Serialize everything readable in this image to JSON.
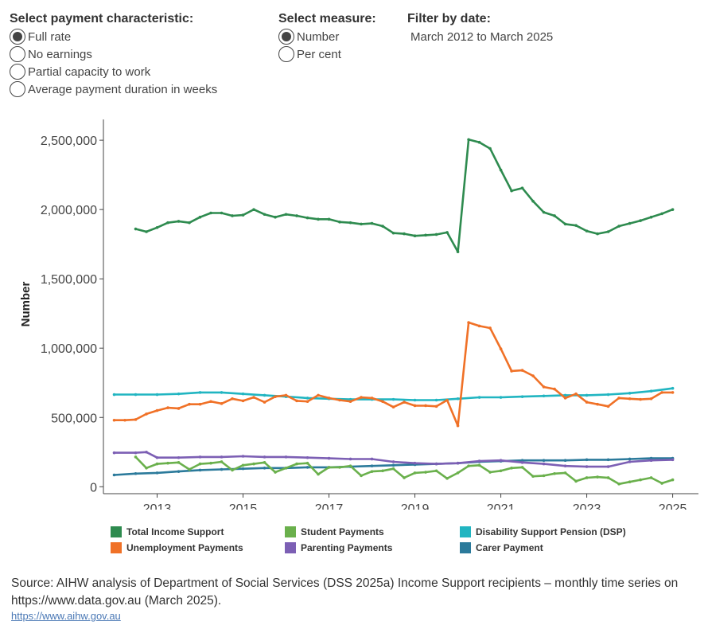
{
  "controls": {
    "payment": {
      "heading": "Select payment characteristic:",
      "options": [
        "Full rate",
        "No earnings",
        "Partial capacity to work",
        "Average payment duration in weeks"
      ],
      "selected_index": 0
    },
    "measure": {
      "heading": "Select measure:",
      "options": [
        "Number",
        "Per cent"
      ],
      "selected_index": 0
    },
    "date_filter": {
      "heading": "Filter by date:",
      "value": "March 2012 to March 2025"
    }
  },
  "chart_data": {
    "type": "line",
    "ylabel": "Number",
    "xlabel": "",
    "ylim": [
      -50000,
      2650000
    ],
    "xlim": [
      2011.75,
      2025.6
    ],
    "y_ticks": [
      0,
      500000,
      1000000,
      1500000,
      2000000,
      2500000
    ],
    "y_tick_labels": [
      "0",
      "500,000",
      "1,000,000",
      "1,500,000",
      "2,000,000",
      "2,500,000"
    ],
    "x_ticks": [
      2013,
      2015,
      2017,
      2019,
      2021,
      2023,
      2025
    ],
    "x_tick_labels": [
      "2013",
      "2015",
      "2017",
      "2019",
      "2021",
      "2023",
      "2025"
    ],
    "grid": false,
    "legend_position": "bottom",
    "series": [
      {
        "name": "Total Income Support",
        "color": "#2e8b4f",
        "x": [
          2012.5,
          2012.75,
          2013.0,
          2013.25,
          2013.5,
          2013.75,
          2014.0,
          2014.25,
          2014.5,
          2014.75,
          2015.0,
          2015.25,
          2015.5,
          2015.75,
          2016.0,
          2016.25,
          2016.5,
          2016.75,
          2017.0,
          2017.25,
          2017.5,
          2017.75,
          2018.0,
          2018.25,
          2018.5,
          2018.75,
          2019.0,
          2019.25,
          2019.5,
          2019.75,
          2020.0,
          2020.25,
          2020.5,
          2020.75,
          2021.0,
          2021.25,
          2021.5,
          2021.75,
          2022.0,
          2022.25,
          2022.5,
          2022.75,
          2023.0,
          2023.25,
          2023.5,
          2023.75,
          2024.0,
          2024.25,
          2024.5,
          2024.75,
          2025.0
        ],
        "values": [
          1860000,
          1840000,
          1870000,
          1905000,
          1915000,
          1905000,
          1945000,
          1975000,
          1975000,
          1955000,
          1960000,
          2000000,
          1965000,
          1945000,
          1965000,
          1955000,
          1940000,
          1930000,
          1930000,
          1910000,
          1905000,
          1895000,
          1900000,
          1880000,
          1830000,
          1825000,
          1810000,
          1815000,
          1820000,
          1835000,
          1695000,
          2505000,
          2485000,
          2440000,
          2285000,
          2135000,
          2155000,
          2060000,
          1980000,
          1955000,
          1895000,
          1885000,
          1845000,
          1825000,
          1840000,
          1880000,
          1900000,
          1920000,
          1945000,
          1970000,
          2000000
        ]
      },
      {
        "name": "Unemployment Payments",
        "color": "#f07127",
        "x": [
          2012.0,
          2012.25,
          2012.5,
          2012.75,
          2013.0,
          2013.25,
          2013.5,
          2013.75,
          2014.0,
          2014.25,
          2014.5,
          2014.75,
          2015.0,
          2015.25,
          2015.5,
          2015.75,
          2016.0,
          2016.25,
          2016.5,
          2016.75,
          2017.0,
          2017.25,
          2017.5,
          2017.75,
          2018.0,
          2018.25,
          2018.5,
          2018.75,
          2019.0,
          2019.25,
          2019.5,
          2019.75,
          2020.0,
          2020.25,
          2020.5,
          2020.75,
          2021.0,
          2021.25,
          2021.5,
          2021.75,
          2022.0,
          2022.25,
          2022.5,
          2022.75,
          2023.0,
          2023.25,
          2023.5,
          2023.75,
          2024.0,
          2024.25,
          2024.5,
          2024.75,
          2025.0
        ],
        "values": [
          480000,
          480000,
          485000,
          525000,
          550000,
          570000,
          565000,
          595000,
          595000,
          615000,
          600000,
          635000,
          620000,
          645000,
          610000,
          650000,
          660000,
          620000,
          615000,
          660000,
          640000,
          625000,
          615000,
          645000,
          640000,
          615000,
          575000,
          610000,
          585000,
          585000,
          580000,
          625000,
          440000,
          1185000,
          1160000,
          1145000,
          995000,
          835000,
          840000,
          800000,
          720000,
          705000,
          640000,
          670000,
          610000,
          595000,
          580000,
          640000,
          635000,
          630000,
          635000,
          680000,
          680000
        ]
      },
      {
        "name": "Disability Support Pension (DSP)",
        "color": "#21b5c1",
        "x": [
          2012.0,
          2012.5,
          2013.0,
          2013.5,
          2014.0,
          2014.5,
          2015.0,
          2015.5,
          2016.0,
          2016.5,
          2017.0,
          2017.5,
          2018.0,
          2018.5,
          2019.0,
          2019.5,
          2020.0,
          2020.5,
          2021.0,
          2021.5,
          2022.0,
          2022.5,
          2023.0,
          2023.5,
          2024.0,
          2024.5,
          2025.0
        ],
        "values": [
          665000,
          665000,
          665000,
          670000,
          680000,
          680000,
          670000,
          660000,
          650000,
          640000,
          635000,
          630000,
          630000,
          630000,
          625000,
          625000,
          635000,
          645000,
          645000,
          650000,
          655000,
          660000,
          660000,
          665000,
          675000,
          690000,
          710000
        ]
      },
      {
        "name": "Student Payments",
        "color": "#6ab04c",
        "x": [
          2012.5,
          2012.75,
          2013.0,
          2013.25,
          2013.5,
          2013.75,
          2014.0,
          2014.25,
          2014.5,
          2014.75,
          2015.0,
          2015.25,
          2015.5,
          2015.75,
          2016.0,
          2016.25,
          2016.5,
          2016.75,
          2017.0,
          2017.25,
          2017.5,
          2017.75,
          2018.0,
          2018.25,
          2018.5,
          2018.75,
          2019.0,
          2019.25,
          2019.5,
          2019.75,
          2020.0,
          2020.25,
          2020.5,
          2020.75,
          2021.0,
          2021.25,
          2021.5,
          2021.75,
          2022.0,
          2022.25,
          2022.5,
          2022.75,
          2023.0,
          2023.25,
          2023.5,
          2023.75,
          2024.0,
          2024.25,
          2024.5,
          2024.75,
          2025.0
        ],
        "values": [
          215000,
          135000,
          165000,
          170000,
          175000,
          125000,
          165000,
          170000,
          180000,
          120000,
          155000,
          165000,
          175000,
          105000,
          135000,
          165000,
          170000,
          90000,
          140000,
          140000,
          150000,
          80000,
          110000,
          115000,
          130000,
          65000,
          100000,
          105000,
          115000,
          60000,
          100000,
          150000,
          155000,
          105000,
          115000,
          135000,
          140000,
          75000,
          80000,
          95000,
          100000,
          40000,
          65000,
          70000,
          65000,
          20000,
          35000,
          50000,
          65000,
          25000,
          50000
        ]
      },
      {
        "name": "Parenting Payments",
        "color": "#7c5fb4",
        "x": [
          2012.0,
          2012.5,
          2012.75,
          2013.0,
          2013.5,
          2014.0,
          2014.5,
          2015.0,
          2015.5,
          2016.0,
          2016.5,
          2017.0,
          2017.5,
          2018.0,
          2018.5,
          2019.0,
          2019.5,
          2020.0,
          2020.5,
          2021.0,
          2021.5,
          2022.0,
          2022.5,
          2023.0,
          2023.5,
          2024.0,
          2024.5,
          2025.0
        ],
        "values": [
          245000,
          245000,
          250000,
          210000,
          210000,
          215000,
          215000,
          220000,
          215000,
          215000,
          210000,
          205000,
          200000,
          200000,
          180000,
          170000,
          165000,
          170000,
          185000,
          190000,
          175000,
          165000,
          150000,
          145000,
          145000,
          180000,
          190000,
          195000
        ]
      },
      {
        "name": "Carer Payment",
        "color": "#2b7a9b",
        "x": [
          2012.0,
          2012.5,
          2013.0,
          2013.5,
          2014.0,
          2014.5,
          2015.0,
          2015.5,
          2016.0,
          2016.5,
          2017.0,
          2017.5,
          2018.0,
          2018.5,
          2019.0,
          2019.5,
          2020.0,
          2020.5,
          2021.0,
          2021.5,
          2022.0,
          2022.5,
          2023.0,
          2023.5,
          2024.0,
          2024.5,
          2025.0
        ],
        "values": [
          85000,
          95000,
          100000,
          110000,
          120000,
          125000,
          130000,
          135000,
          135000,
          140000,
          140000,
          145000,
          150000,
          155000,
          160000,
          165000,
          170000,
          180000,
          185000,
          190000,
          190000,
          190000,
          195000,
          195000,
          200000,
          205000,
          205000
        ]
      }
    ]
  },
  "source": {
    "text": "Source: AIHW analysis of Department of Social Services (DSS 2025a) Income Support recipients – monthly time series on https://www.data.gov.au (March 2025).",
    "link": "https://www.aihw.gov.au"
  }
}
